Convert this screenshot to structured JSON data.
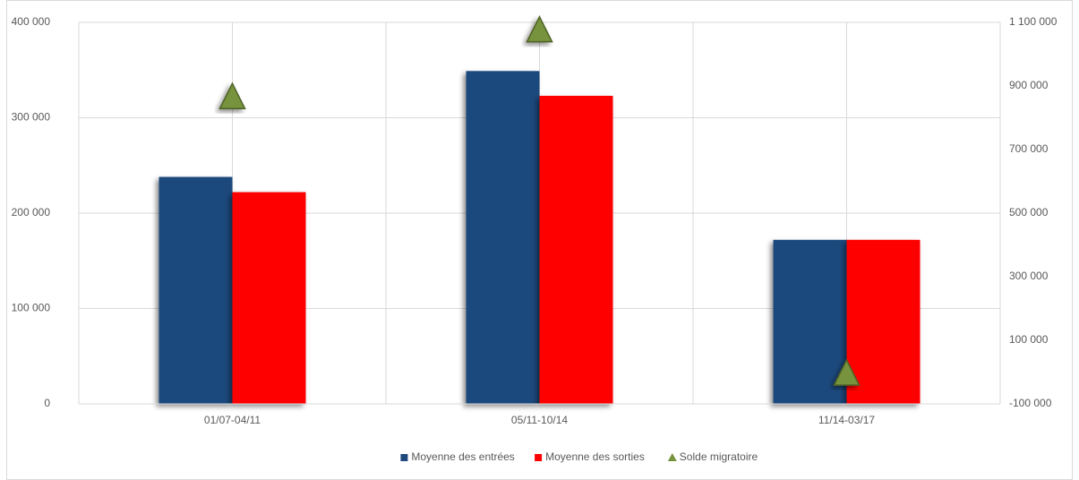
{
  "chart_data": {
    "type": "bar",
    "categories": [
      "01/07-04/11",
      "05/11-10/14",
      "11/14-03/17"
    ],
    "series": [
      {
        "name": "Moyenne des entrées",
        "color": "#1f497d",
        "values": [
          238000,
          349000,
          172000
        ]
      },
      {
        "name": "Moyenne des sorties",
        "color": "#ff0000",
        "values": [
          222000,
          323000,
          172000
        ]
      },
      {
        "name": "Solde migratoire",
        "color": "#77933c",
        "axis": "y2",
        "marker": "triangle",
        "values": [
          860000,
          1070000,
          -10000
        ]
      }
    ],
    "ylim": [
      0,
      400000
    ],
    "yticks": [
      0,
      {
        "value": 100000,
        "label": "100 000"
      },
      {
        "value": 200000,
        "label": "200 000"
      },
      {
        "value": 300000,
        "label": "300 000"
      },
      {
        "value": 400000,
        "label": "400 000"
      }
    ],
    "y2lim": [
      -100000,
      1100000
    ],
    "y2ticks": [
      {
        "value": -100000,
        "label": "-100 000"
      },
      {
        "value": 100000,
        "label": "100 000"
      },
      {
        "value": 300000,
        "label": "300 000"
      },
      {
        "value": 500000,
        "label": "500 000"
      },
      {
        "value": 700000,
        "label": "700 000"
      },
      {
        "value": 900000,
        "label": "900 000"
      },
      {
        "value": 1100000,
        "label": "1 100 000"
      }
    ],
    "grid": true,
    "legend": "bottom"
  }
}
